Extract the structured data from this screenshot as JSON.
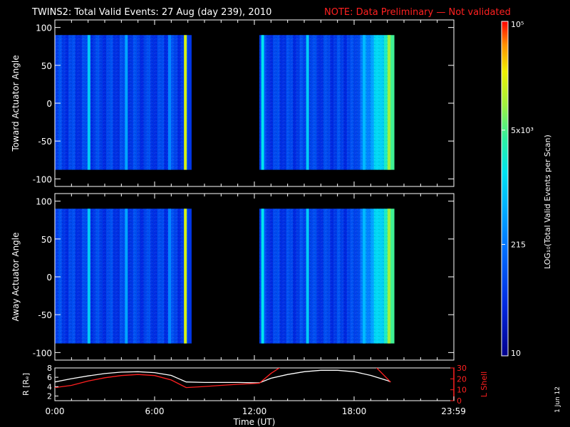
{
  "title": {
    "main": "TWINS2: Total Valid Events: 27 Aug (day 239), 2010",
    "note": "NOTE: Data Preliminary — Not validated",
    "note_color": "#ff2020"
  },
  "footer": {
    "date_stamp": "1 Jun 12"
  },
  "chart_data": [
    {
      "type": "heatmap",
      "ylabel": "Toward Actuator Angle",
      "ylim": [
        -110,
        110
      ],
      "yticks": [
        100,
        50,
        0,
        -50,
        -100
      ],
      "xlim": [
        0,
        24
      ],
      "data_blocks": [
        {
          "start": 0.0,
          "end": 8.0,
          "angle_range": [
            -88,
            90
          ],
          "bright_bands": [
            {
              "at": 2.05,
              "level": 0.5
            },
            {
              "at": 4.3,
              "level": 0.42
            },
            {
              "at": 6.9,
              "level": 0.36
            },
            {
              "at": 7.85,
              "level": 0.82
            }
          ]
        },
        {
          "start": 12.3,
          "end": 20.2,
          "angle_range": [
            -88,
            90
          ],
          "bright_bands": [
            {
              "at": 12.5,
              "level": 0.55
            },
            {
              "at": 15.2,
              "level": 0.5
            },
            {
              "at": 18.6,
              "level": 0.46
            },
            {
              "at": 20.1,
              "level": 0.75
            }
          ]
        }
      ]
    },
    {
      "type": "heatmap",
      "ylabel": "Away Actuator Angle",
      "ylim": [
        -110,
        110
      ],
      "yticks": [
        100,
        50,
        0,
        -50,
        -100
      ],
      "xlim": [
        0,
        24
      ],
      "data_blocks": [
        {
          "start": 0.0,
          "end": 8.0,
          "angle_range": [
            -88,
            90
          ],
          "bright_bands": [
            {
              "at": 2.05,
              "level": 0.5
            },
            {
              "at": 4.3,
              "level": 0.42
            },
            {
              "at": 6.9,
              "level": 0.36
            },
            {
              "at": 7.85,
              "level": 0.82
            }
          ]
        },
        {
          "start": 12.3,
          "end": 20.2,
          "angle_range": [
            -88,
            90
          ],
          "bright_bands": [
            {
              "at": 12.5,
              "level": 0.55
            },
            {
              "at": 15.2,
              "level": 0.5
            },
            {
              "at": 18.6,
              "level": 0.46
            },
            {
              "at": 20.1,
              "level": 0.75
            }
          ]
        }
      ]
    },
    {
      "type": "line",
      "xlabel": "Time (UT)",
      "xlim": [
        0,
        24
      ],
      "xticks": [
        0,
        6,
        12,
        18,
        23.983
      ],
      "xtick_labels": [
        "0:00",
        "6:00",
        "12:00",
        "18:00",
        "23:59"
      ],
      "left_axis": {
        "label": "R [Rₑ]",
        "label_color": "#ffffff",
        "ylim": [
          1,
          8
        ],
        "ticks": [
          2,
          4,
          6,
          8
        ]
      },
      "right_axis": {
        "label": "L Shell",
        "label_color": "#ff2020",
        "ylim": [
          0,
          30
        ],
        "ticks": [
          0,
          10,
          20,
          30
        ]
      },
      "series": [
        {
          "axis": "left",
          "color": "#ffffff",
          "x": [
            0,
            1,
            2,
            3,
            4,
            5,
            6,
            7,
            7.9,
            9,
            10,
            11,
            12.3,
            13,
            14,
            15,
            16,
            17,
            18,
            19,
            20,
            20.2
          ],
          "y": [
            5.0,
            5.7,
            6.3,
            6.8,
            7.1,
            7.2,
            7.0,
            6.4,
            5.0,
            4.9,
            4.9,
            4.9,
            4.8,
            5.8,
            6.6,
            7.2,
            7.5,
            7.5,
            7.2,
            6.4,
            5.3,
            5.0
          ]
        },
        {
          "axis": "right",
          "color": "#ff2020",
          "x": [
            0,
            1,
            2,
            3,
            4,
            5,
            6,
            7,
            7.9,
            9,
            10,
            11,
            12.3,
            13,
            13.6
          ],
          "y": [
            12,
            14,
            18,
            21,
            23,
            24,
            23,
            19,
            12,
            13,
            14,
            15,
            16,
            25,
            31
          ]
        },
        {
          "axis": "right",
          "color": "#ff2020",
          "x": [
            19.3,
            20.2
          ],
          "y": [
            31,
            17
          ]
        }
      ]
    },
    {
      "type": "colorbar",
      "label": "LOG₁₀(Total Valid Events per Scan)",
      "ticks": [
        {
          "value": 10,
          "label": "10"
        },
        {
          "value": 215,
          "label": "215"
        },
        {
          "value": 5000,
          "label": "5x10³"
        },
        {
          "value": 100000,
          "label": "10⁵"
        }
      ],
      "range": [
        10,
        100000
      ],
      "scale": "log"
    }
  ]
}
